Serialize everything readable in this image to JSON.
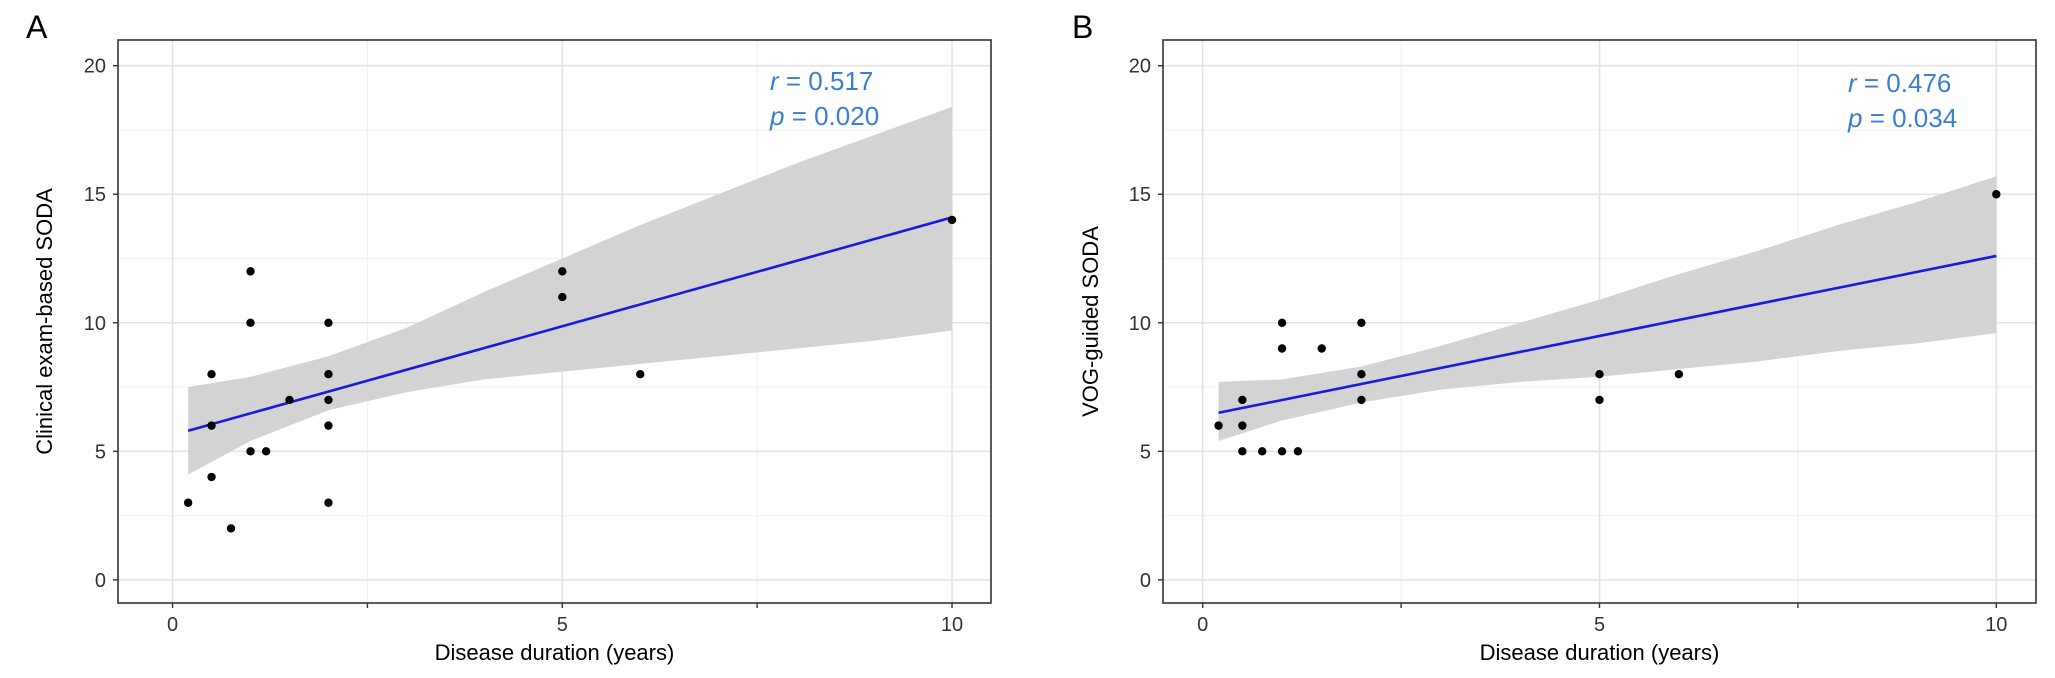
{
  "chart_data": [
    {
      "type": "scatter",
      "panel_label": "A",
      "xlabel": "Disease duration (years)",
      "ylabel": "Clinical exam-based SODA",
      "xlim": [
        -0.7,
        10.5
      ],
      "ylim": [
        -0.9,
        21
      ],
      "x_ticks": [
        0,
        5,
        10
      ],
      "y_ticks": [
        0,
        5,
        10,
        15,
        20
      ],
      "grid": true,
      "points": [
        {
          "x": 0.2,
          "y": 3
        },
        {
          "x": 0.5,
          "y": 8
        },
        {
          "x": 0.5,
          "y": 6
        },
        {
          "x": 0.5,
          "y": 4
        },
        {
          "x": 0.75,
          "y": 2
        },
        {
          "x": 1,
          "y": 12
        },
        {
          "x": 1,
          "y": 10
        },
        {
          "x": 1,
          "y": 5
        },
        {
          "x": 1.2,
          "y": 5
        },
        {
          "x": 1.5,
          "y": 7
        },
        {
          "x": 2,
          "y": 10
        },
        {
          "x": 2,
          "y": 8
        },
        {
          "x": 2,
          "y": 7
        },
        {
          "x": 2,
          "y": 6
        },
        {
          "x": 2,
          "y": 3
        },
        {
          "x": 5,
          "y": 12
        },
        {
          "x": 5,
          "y": 11
        },
        {
          "x": 6,
          "y": 8
        },
        {
          "x": 10,
          "y": 14
        }
      ],
      "fit_line": {
        "x": [
          0.2,
          10
        ],
        "y": [
          5.8,
          14.1
        ],
        "color": "#1a1adb"
      },
      "confidence_band": {
        "x": [
          0.2,
          1,
          2,
          3,
          4,
          5,
          6,
          7,
          8,
          9,
          10
        ],
        "upper": [
          7.5,
          7.9,
          8.7,
          9.8,
          11.2,
          12.5,
          13.8,
          15.0,
          16.2,
          17.3,
          18.4
        ],
        "lower": [
          4.1,
          5.4,
          6.6,
          7.3,
          7.8,
          8.1,
          8.4,
          8.7,
          9.0,
          9.3,
          9.7
        ],
        "color": "#d3d3d3"
      },
      "annotation": {
        "r_label": "r",
        "r_value": " = 0.517",
        "p_label": "p",
        "p_value": " = 0.020"
      }
    },
    {
      "type": "scatter",
      "panel_label": "B",
      "xlabel": "Disease duration (years)",
      "ylabel": "VOG-guided SODA",
      "xlim": [
        -0.5,
        10.5
      ],
      "ylim": [
        -0.9,
        21
      ],
      "x_ticks": [
        0,
        5,
        10
      ],
      "y_ticks": [
        0,
        5,
        10,
        15,
        20
      ],
      "grid": true,
      "points": [
        {
          "x": 0.2,
          "y": 6
        },
        {
          "x": 0.5,
          "y": 7
        },
        {
          "x": 0.5,
          "y": 6
        },
        {
          "x": 0.5,
          "y": 5
        },
        {
          "x": 0.75,
          "y": 5
        },
        {
          "x": 1,
          "y": 10
        },
        {
          "x": 1,
          "y": 9
        },
        {
          "x": 1,
          "y": 5
        },
        {
          "x": 1.2,
          "y": 5
        },
        {
          "x": 1.5,
          "y": 9
        },
        {
          "x": 2,
          "y": 10
        },
        {
          "x": 2,
          "y": 8
        },
        {
          "x": 2,
          "y": 7
        },
        {
          "x": 5,
          "y": 8
        },
        {
          "x": 5,
          "y": 7
        },
        {
          "x": 6,
          "y": 8
        },
        {
          "x": 10,
          "y": 15
        }
      ],
      "fit_line": {
        "x": [
          0.2,
          10
        ],
        "y": [
          6.5,
          12.6
        ],
        "color": "#1a1adb"
      },
      "confidence_band": {
        "x": [
          0.2,
          1,
          2,
          3,
          4,
          5,
          6,
          7,
          8,
          9,
          10
        ],
        "upper": [
          7.7,
          7.8,
          8.3,
          9.1,
          10.0,
          10.9,
          11.9,
          12.8,
          13.8,
          14.7,
          15.7
        ],
        "lower": [
          5.4,
          6.2,
          6.9,
          7.4,
          7.7,
          7.9,
          8.2,
          8.5,
          8.9,
          9.2,
          9.6
        ],
        "color": "#d3d3d3"
      },
      "annotation": {
        "r_label": "r",
        "r_value": " = 0.476",
        "p_label": "p",
        "p_value": " = 0.034"
      }
    }
  ]
}
